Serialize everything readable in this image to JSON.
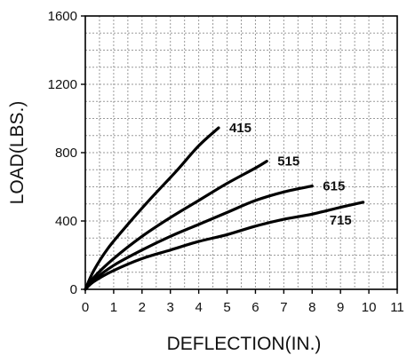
{
  "chart_data": {
    "type": "line",
    "title": "",
    "xlabel": "DEFLECTION(IN.)",
    "ylabel": "LOAD(LBS.)",
    "xlim": [
      0,
      11
    ],
    "ylim": [
      0,
      1600
    ],
    "x_ticks": [
      0,
      1,
      2,
      3,
      4,
      5,
      6,
      7,
      8,
      9,
      10,
      11
    ],
    "y_ticks": [
      0,
      400,
      800,
      1200,
      1600
    ],
    "x_tick_labels": [
      "0",
      "1",
      "2",
      "3",
      "4",
      "5",
      "6",
      "7",
      "8",
      "9",
      "10",
      "11"
    ],
    "y_tick_labels": [
      "0",
      "400",
      "800",
      "1200",
      "1600"
    ],
    "grid": true,
    "legend": "none",
    "series": [
      {
        "name": "415",
        "points": [
          [
            0,
            0
          ],
          [
            0.3,
            110
          ],
          [
            0.8,
            240
          ],
          [
            1.5,
            380
          ],
          [
            2.3,
            530
          ],
          [
            3.2,
            690
          ],
          [
            4.0,
            840
          ],
          [
            4.7,
            945
          ]
        ]
      },
      {
        "name": "515",
        "points": [
          [
            0,
            0
          ],
          [
            0.3,
            70
          ],
          [
            1.0,
            180
          ],
          [
            2.0,
            310
          ],
          [
            3.0,
            420
          ],
          [
            4.0,
            520
          ],
          [
            5.0,
            620
          ],
          [
            6.0,
            710
          ],
          [
            6.4,
            750
          ]
        ]
      },
      {
        "name": "615",
        "points": [
          [
            0,
            0
          ],
          [
            0.3,
            55
          ],
          [
            1.0,
            140
          ],
          [
            2.0,
            230
          ],
          [
            3.0,
            310
          ],
          [
            4.0,
            380
          ],
          [
            5.0,
            450
          ],
          [
            6.0,
            520
          ],
          [
            7.0,
            570
          ],
          [
            8.0,
            605
          ]
        ]
      },
      {
        "name": "715",
        "points": [
          [
            0,
            0
          ],
          [
            0.3,
            45
          ],
          [
            1.0,
            110
          ],
          [
            2.0,
            180
          ],
          [
            3.0,
            230
          ],
          [
            4.0,
            280
          ],
          [
            5.0,
            320
          ],
          [
            6.0,
            370
          ],
          [
            7.0,
            410
          ],
          [
            8.0,
            440
          ],
          [
            9.0,
            480
          ],
          [
            9.8,
            510
          ]
        ]
      }
    ]
  }
}
